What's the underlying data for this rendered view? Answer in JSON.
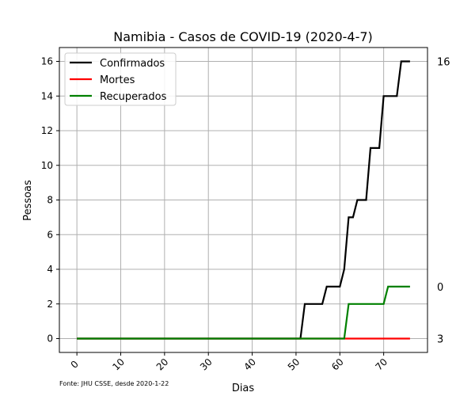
{
  "chart_data": {
    "type": "line",
    "title": "Namibia - Casos de COVID-19 (2020-4-7)",
    "xlabel": "Dias",
    "ylabel": "Pessoas",
    "xlim": [
      -4,
      80
    ],
    "ylim": [
      -0.8,
      16.8
    ],
    "xticks": [
      0,
      10,
      20,
      30,
      40,
      50,
      60,
      70
    ],
    "yticks": [
      0,
      2,
      4,
      6,
      8,
      10,
      12,
      14,
      16
    ],
    "grid": true,
    "legend_position": "top-left",
    "source_note": "Fonte: JHU CSSE, desde 2020-1-22",
    "end_labels": [
      "16",
      "3",
      "0"
    ],
    "series": [
      {
        "name": "Confirmados",
        "color": "#000000",
        "x": [
          0,
          51,
          52,
          56,
          57,
          60,
          61,
          62,
          63,
          64,
          65,
          66,
          67,
          69,
          70,
          72,
          73,
          74,
          76
        ],
        "y": [
          0,
          0,
          2,
          2,
          3,
          3,
          4,
          7,
          7,
          8,
          8,
          8,
          11,
          11,
          14,
          14,
          14,
          16,
          16
        ]
      },
      {
        "name": "Mortes",
        "color": "#ff0000",
        "x": [
          0,
          76
        ],
        "y": [
          0,
          0
        ]
      },
      {
        "name": "Recuperados",
        "color": "#008000",
        "x": [
          0,
          61,
          62,
          70,
          71,
          76
        ],
        "y": [
          0,
          0,
          2,
          2,
          3,
          3
        ]
      }
    ]
  }
}
